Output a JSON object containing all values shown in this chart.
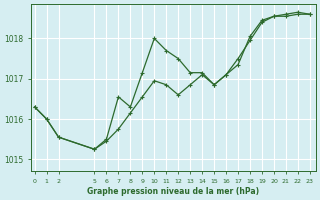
{
  "background_color": "#d6eef2",
  "grid_color": "#ffffff",
  "line_color": "#2d6a2d",
  "marker_color": "#2d6a2d",
  "xlabel": "Graphe pression niveau de la mer (hPa)",
  "ylim": [
    1014.7,
    1018.85
  ],
  "yticks": [
    1015,
    1016,
    1017,
    1018
  ],
  "xticks": [
    0,
    1,
    2,
    5,
    6,
    7,
    8,
    9,
    10,
    11,
    12,
    13,
    14,
    15,
    16,
    17,
    18,
    19,
    20,
    21,
    22,
    23
  ],
  "xlim": [
    -0.3,
    23.5
  ],
  "line1_x": [
    0,
    1,
    2,
    5,
    6,
    7,
    8,
    9,
    10,
    11,
    12,
    13,
    14,
    15,
    16,
    17,
    18,
    19,
    20,
    21,
    22,
    23
  ],
  "line1_y": [
    1016.3,
    1016.0,
    1015.55,
    1015.25,
    1015.5,
    1016.55,
    1016.3,
    1017.15,
    1018.0,
    1017.7,
    1017.5,
    1017.15,
    1017.15,
    1016.85,
    1017.1,
    1017.35,
    1018.05,
    1018.45,
    1018.55,
    1018.55,
    1018.6,
    1018.6
  ],
  "line2_x": [
    0,
    1,
    2,
    5,
    6,
    7,
    8,
    9,
    10,
    11,
    12,
    13,
    14,
    15,
    16,
    17,
    18,
    19,
    20,
    21,
    22,
    23
  ],
  "line2_y": [
    1016.3,
    1016.0,
    1015.55,
    1015.25,
    1015.45,
    1015.75,
    1016.15,
    1016.55,
    1016.95,
    1016.85,
    1016.6,
    1016.85,
    1017.1,
    1016.85,
    1017.1,
    1017.5,
    1017.95,
    1018.4,
    1018.55,
    1018.6,
    1018.65,
    1018.6
  ]
}
